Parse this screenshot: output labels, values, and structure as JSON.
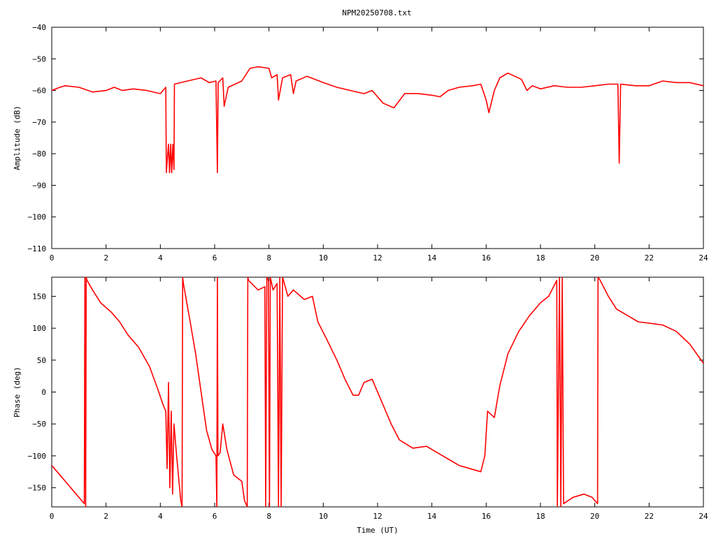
{
  "colors": {
    "background": "#ffffff",
    "axis": "#000000",
    "series": "#ff0000"
  },
  "chart_data": [
    {
      "type": "line",
      "title": "NPM20250708.txt",
      "xlabel": "",
      "ylabel": "Amplitude (dB)",
      "xlim": [
        0,
        24
      ],
      "ylim": [
        -110,
        -40
      ],
      "x_ticks": [
        0,
        2,
        4,
        6,
        8,
        10,
        12,
        14,
        16,
        18,
        20,
        22,
        24
      ],
      "y_ticks": [
        -40,
        -50,
        -60,
        -70,
        -80,
        -90,
        -100,
        -110
      ],
      "grid": false,
      "legend": "none",
      "series": [
        {
          "points": [
            [
              0,
              -60
            ],
            [
              0.3,
              -59
            ],
            [
              0.5,
              -58.5
            ],
            [
              1,
              -59
            ],
            [
              1.5,
              -60.5
            ],
            [
              2,
              -60
            ],
            [
              2.3,
              -59
            ],
            [
              2.6,
              -60
            ],
            [
              3,
              -59.5
            ],
            [
              3.5,
              -60
            ],
            [
              4,
              -61
            ],
            [
              4.2,
              -59
            ],
            [
              4.22,
              -86
            ],
            [
              4.3,
              -77
            ],
            [
              4.34,
              -86
            ],
            [
              4.38,
              -77
            ],
            [
              4.42,
              -86
            ],
            [
              4.46,
              -77
            ],
            [
              4.5,
              -85
            ],
            [
              4.52,
              -58
            ],
            [
              5,
              -57
            ],
            [
              5.5,
              -56
            ],
            [
              5.8,
              -57.5
            ],
            [
              6.05,
              -57
            ],
            [
              6.1,
              -86
            ],
            [
              6.13,
              -57.5
            ],
            [
              6.3,
              -56
            ],
            [
              6.35,
              -65
            ],
            [
              6.5,
              -59
            ],
            [
              7,
              -57
            ],
            [
              7.3,
              -53
            ],
            [
              7.6,
              -52.5
            ],
            [
              8,
              -53
            ],
            [
              8.1,
              -56
            ],
            [
              8.3,
              -55
            ],
            [
              8.35,
              -63
            ],
            [
              8.5,
              -56
            ],
            [
              8.8,
              -55
            ],
            [
              8.9,
              -61
            ],
            [
              9,
              -57
            ],
            [
              9.4,
              -55.5
            ],
            [
              10,
              -57.5
            ],
            [
              10.5,
              -59
            ],
            [
              11,
              -60
            ],
            [
              11.5,
              -61
            ],
            [
              11.8,
              -60
            ],
            [
              12.2,
              -64
            ],
            [
              12.6,
              -65.5
            ],
            [
              13,
              -61
            ],
            [
              13.5,
              -61
            ],
            [
              14,
              -61.5
            ],
            [
              14.3,
              -62
            ],
            [
              14.6,
              -60
            ],
            [
              15,
              -59
            ],
            [
              15.5,
              -58.5
            ],
            [
              15.8,
              -58
            ],
            [
              16,
              -63
            ],
            [
              16.1,
              -67
            ],
            [
              16.3,
              -60
            ],
            [
              16.5,
              -56
            ],
            [
              16.8,
              -54.5
            ],
            [
              17.3,
              -56.5
            ],
            [
              17.5,
              -60
            ],
            [
              17.7,
              -58.5
            ],
            [
              18,
              -59.5
            ],
            [
              18.5,
              -58.5
            ],
            [
              19,
              -59
            ],
            [
              19.5,
              -59
            ],
            [
              20,
              -58.5
            ],
            [
              20.5,
              -58
            ],
            [
              20.85,
              -58
            ],
            [
              20.9,
              -83
            ],
            [
              20.95,
              -58
            ],
            [
              21.5,
              -58.5
            ],
            [
              22,
              -58.5
            ],
            [
              22.5,
              -57
            ],
            [
              23,
              -57.5
            ],
            [
              23.5,
              -57.5
            ],
            [
              24,
              -58.5
            ]
          ]
        }
      ]
    },
    {
      "type": "line",
      "title": "",
      "xlabel": "Time (UT)",
      "ylabel": "Phase (deg)",
      "xlim": [
        0,
        24
      ],
      "ylim": [
        -180,
        180
      ],
      "x_ticks": [
        0,
        2,
        4,
        6,
        8,
        10,
        12,
        14,
        16,
        18,
        20,
        22,
        24
      ],
      "y_ticks": [
        150,
        100,
        50,
        0,
        -50,
        -100,
        -150
      ],
      "grid": false,
      "legend": "none",
      "series": [
        {
          "points": [
            [
              0,
              -115
            ],
            [
              0.3,
              -130
            ],
            [
              0.6,
              -145
            ],
            [
              0.9,
              -160
            ],
            [
              1.2,
              -175
            ],
            [
              1.22,
              180
            ],
            [
              1.25,
              -180
            ],
            [
              1.27,
              180
            ],
            [
              1.3,
              175
            ],
            [
              1.5,
              160
            ],
            [
              1.8,
              140
            ],
            [
              2.2,
              125
            ],
            [
              2.5,
              110
            ],
            [
              2.8,
              90
            ],
            [
              3.2,
              70
            ],
            [
              3.6,
              40
            ],
            [
              3.9,
              5
            ],
            [
              4.1,
              -20
            ],
            [
              4.2,
              -30
            ],
            [
              4.25,
              -120
            ],
            [
              4.3,
              15
            ],
            [
              4.35,
              -150
            ],
            [
              4.4,
              -30
            ],
            [
              4.45,
              -160
            ],
            [
              4.5,
              -50
            ],
            [
              4.6,
              -100
            ],
            [
              4.75,
              -170
            ],
            [
              4.8,
              -180
            ],
            [
              4.82,
              180
            ],
            [
              4.85,
              170
            ],
            [
              5.1,
              110
            ],
            [
              5.3,
              60
            ],
            [
              5.5,
              0
            ],
            [
              5.7,
              -60
            ],
            [
              5.9,
              -90
            ],
            [
              6.05,
              -100
            ],
            [
              6.08,
              -180
            ],
            [
              6.1,
              180
            ],
            [
              6.12,
              -100
            ],
            [
              6.2,
              -95
            ],
            [
              6.3,
              -50
            ],
            [
              6.45,
              -90
            ],
            [
              6.7,
              -130
            ],
            [
              7,
              -140
            ],
            [
              7.1,
              -170
            ],
            [
              7.2,
              -180
            ],
            [
              7.22,
              180
            ],
            [
              7.25,
              175
            ],
            [
              7.6,
              160
            ],
            [
              7.85,
              165
            ],
            [
              7.88,
              -180
            ],
            [
              7.92,
              180
            ],
            [
              7.98,
              175
            ],
            [
              8.02,
              -180
            ],
            [
              8.05,
              180
            ],
            [
              8.15,
              160
            ],
            [
              8.3,
              170
            ],
            [
              8.35,
              -180
            ],
            [
              8.4,
              180
            ],
            [
              8.45,
              -180
            ],
            [
              8.5,
              180
            ],
            [
              8.7,
              150
            ],
            [
              8.9,
              160
            ],
            [
              9.3,
              145
            ],
            [
              9.6,
              150
            ],
            [
              9.8,
              110
            ],
            [
              10.1,
              85
            ],
            [
              10.5,
              50
            ],
            [
              10.8,
              20
            ],
            [
              11.1,
              -5
            ],
            [
              11.3,
              -5
            ],
            [
              11.5,
              15
            ],
            [
              11.8,
              20
            ],
            [
              12.1,
              -10
            ],
            [
              12.5,
              -50
            ],
            [
              12.8,
              -75
            ],
            [
              13.3,
              -88
            ],
            [
              13.8,
              -85
            ],
            [
              14.2,
              -95
            ],
            [
              14.6,
              -105
            ],
            [
              15,
              -115
            ],
            [
              15.4,
              -120
            ],
            [
              15.8,
              -125
            ],
            [
              15.95,
              -100
            ],
            [
              16.05,
              -30
            ],
            [
              16.3,
              -40
            ],
            [
              16.5,
              10
            ],
            [
              16.8,
              60
            ],
            [
              17.2,
              95
            ],
            [
              17.6,
              120
            ],
            [
              18,
              140
            ],
            [
              18.3,
              150
            ],
            [
              18.6,
              175
            ],
            [
              18.62,
              -180
            ],
            [
              18.7,
              180
            ],
            [
              18.75,
              -180
            ],
            [
              18.8,
              180
            ],
            [
              18.85,
              -175
            ],
            [
              19.2,
              -165
            ],
            [
              19.6,
              -160
            ],
            [
              19.9,
              -165
            ],
            [
              20.1,
              -175
            ],
            [
              20.12,
              180
            ],
            [
              20.2,
              175
            ],
            [
              20.5,
              150
            ],
            [
              20.8,
              130
            ],
            [
              21.2,
              120
            ],
            [
              21.6,
              110
            ],
            [
              22,
              108
            ],
            [
              22.5,
              105
            ],
            [
              23,
              95
            ],
            [
              23.5,
              75
            ],
            [
              24,
              45
            ]
          ]
        }
      ]
    }
  ]
}
